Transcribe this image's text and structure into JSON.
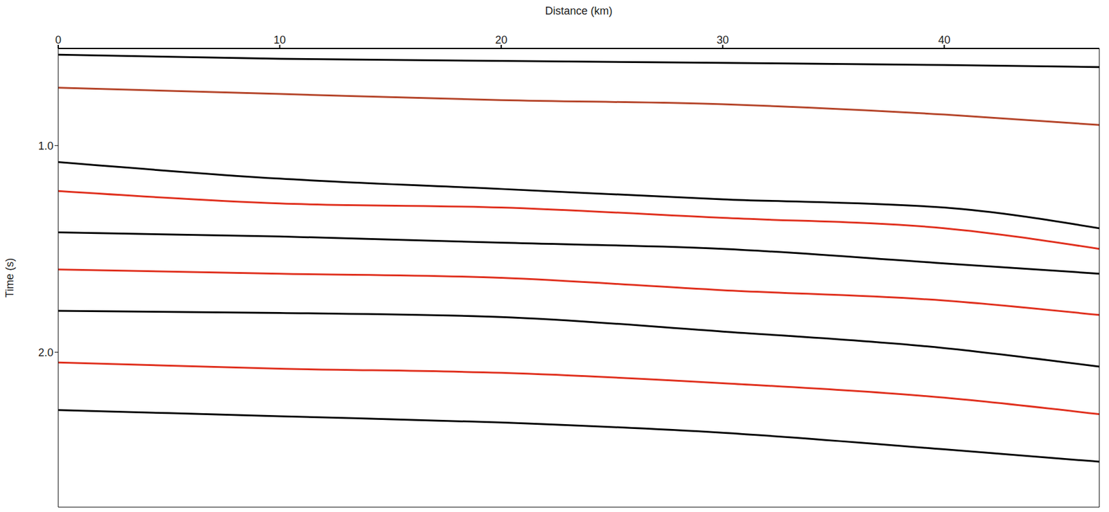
{
  "chart_data": {
    "type": "line",
    "x_label": "Distance (km)",
    "y_label": "Time (s)",
    "x": [
      0,
      10,
      20,
      30,
      40,
      47
    ],
    "series": [
      {
        "color": "#000000",
        "values": [
          0.56,
          0.58,
          0.59,
          0.6,
          0.61,
          0.62
        ]
      },
      {
        "color": "#b5452a",
        "values": [
          0.72,
          0.75,
          0.78,
          0.8,
          0.85,
          0.9
        ]
      },
      {
        "color": "#000000",
        "values": [
          1.08,
          1.16,
          1.21,
          1.26,
          1.3,
          1.4
        ]
      },
      {
        "color": "#e0301e",
        "values": [
          1.22,
          1.28,
          1.3,
          1.35,
          1.4,
          1.5
        ]
      },
      {
        "color": "#000000",
        "values": [
          1.42,
          1.44,
          1.47,
          1.5,
          1.57,
          1.62
        ]
      },
      {
        "color": "#e0301e",
        "values": [
          1.6,
          1.62,
          1.64,
          1.7,
          1.75,
          1.82
        ]
      },
      {
        "color": "#000000",
        "values": [
          1.8,
          1.81,
          1.83,
          1.9,
          1.98,
          2.07
        ]
      },
      {
        "color": "#e0301e",
        "values": [
          2.05,
          2.08,
          2.1,
          2.15,
          2.22,
          2.3
        ]
      },
      {
        "color": "#000000",
        "values": [
          2.28,
          2.31,
          2.34,
          2.39,
          2.47,
          2.53
        ]
      }
    ],
    "xlim": [
      0,
      47
    ],
    "xticks": [
      0,
      10,
      20,
      30,
      40
    ],
    "ylim": [
      0.53,
      2.75
    ],
    "yticks": [
      {
        "value": 1,
        "label": "1.0"
      },
      {
        "value": 2,
        "label": "2.0"
      }
    ]
  }
}
